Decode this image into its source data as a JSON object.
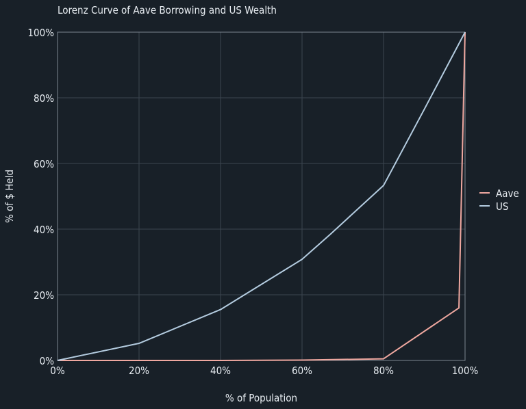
{
  "chart_data": {
    "type": "line",
    "title": "Lorenz Curve of Aave Borrowing and US Wealth",
    "xlabel": "% of Population",
    "ylabel": "% of $ Held",
    "xlim": [
      0,
      100
    ],
    "ylim": [
      0,
      100
    ],
    "x_ticks": [
      "0%",
      "20%",
      "40%",
      "60%",
      "80%",
      "100%"
    ],
    "y_ticks": [
      "0%",
      "20%",
      "40%",
      "60%",
      "80%",
      "100%"
    ],
    "grid": true,
    "legend_position": "right",
    "series": [
      {
        "name": "Aave",
        "color": "#f0a8a0",
        "points": [
          [
            0,
            0
          ],
          [
            20,
            0
          ],
          [
            40,
            0
          ],
          [
            60,
            0.1
          ],
          [
            80,
            0.5
          ],
          [
            98.5,
            16
          ],
          [
            100,
            100
          ]
        ]
      },
      {
        "name": "US",
        "color": "#b4cce0",
        "points": [
          [
            0,
            0
          ],
          [
            20,
            5.2
          ],
          [
            40,
            15.5
          ],
          [
            60,
            30.8
          ],
          [
            67,
            38.5
          ],
          [
            80,
            53.3
          ],
          [
            90,
            76.5
          ],
          [
            100,
            100
          ]
        ]
      }
    ]
  }
}
